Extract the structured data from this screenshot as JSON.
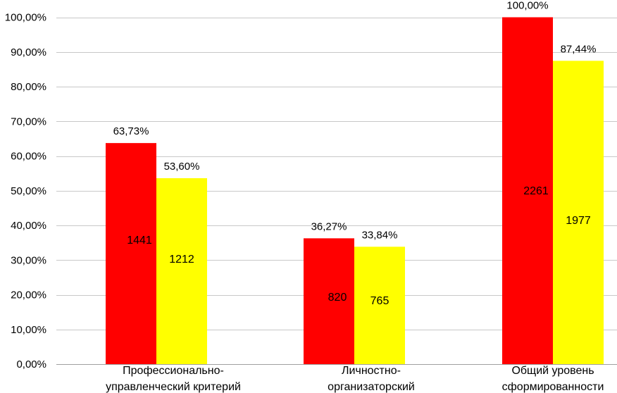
{
  "chart_data": {
    "type": "bar",
    "categories": [
      [
        "Профессионально-",
        "управленческий критерий"
      ],
      [
        "Личностно-",
        "организаторский"
      ],
      [
        "Общий уровень",
        "сформированности"
      ]
    ],
    "series": [
      {
        "color": "#ff0000",
        "values": [
          63.73,
          36.27,
          100.0
        ],
        "value_labels": [
          "63,73%",
          "36,27%",
          "100,00%"
        ],
        "count_labels": [
          "1441",
          "820",
          "2261"
        ]
      },
      {
        "color": "#ffff00",
        "values": [
          53.6,
          33.84,
          87.44
        ],
        "value_labels": [
          "53,60%",
          "33,84%",
          "87,44%"
        ],
        "count_labels": [
          "1212",
          "765",
          "1977"
        ]
      }
    ],
    "ylim": [
      0,
      100
    ],
    "y_ticks": [
      0,
      10,
      20,
      30,
      40,
      50,
      60,
      70,
      80,
      90,
      100
    ],
    "y_tick_labels": [
      "0,00%",
      "10,00%",
      "20,00%",
      "30,00%",
      "40,00%",
      "50,00%",
      "60,00%",
      "70,00%",
      "80,00%",
      "90,00%",
      "100,00%"
    ],
    "grid": true,
    "legend": "none",
    "gridline_color": "#c8c8c8",
    "axis_color": "#a0a0a0"
  }
}
